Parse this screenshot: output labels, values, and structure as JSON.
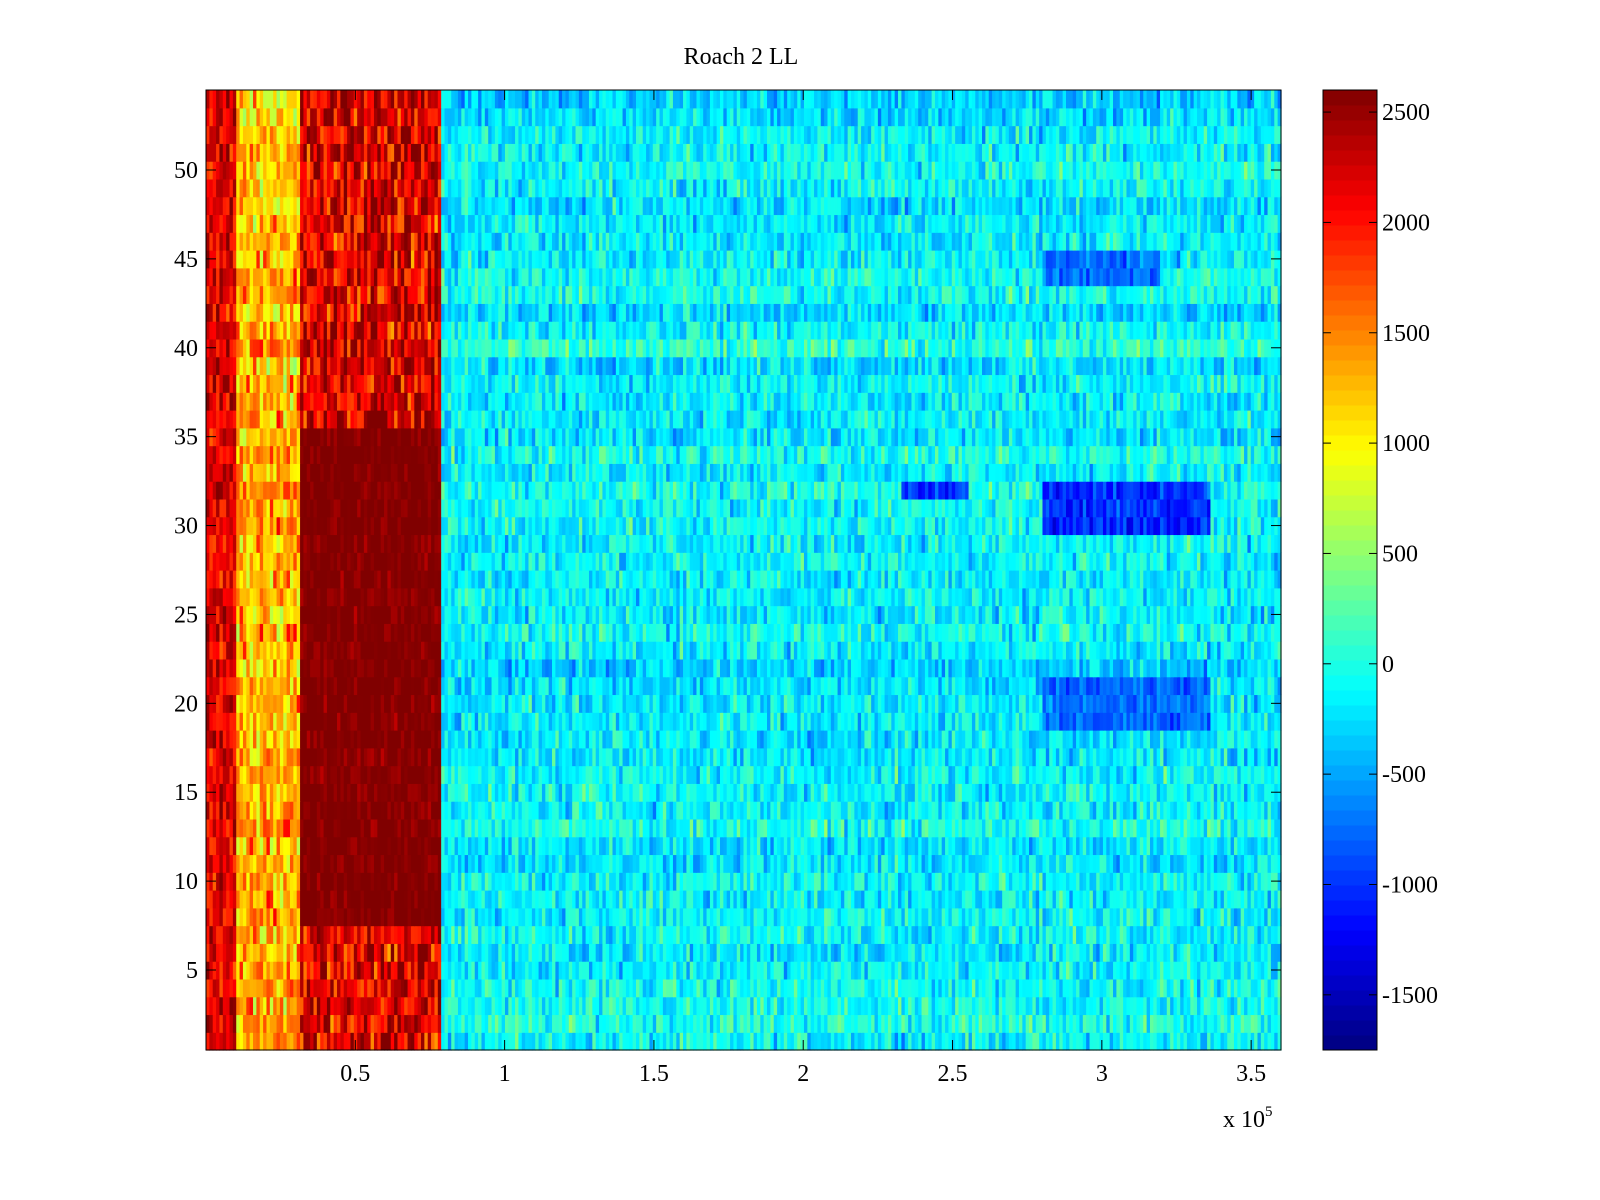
{
  "chart_data": {
    "type": "heatmap",
    "title": "Roach 2 LL",
    "xlabel": "",
    "ylabel": "",
    "x_multiplier_label": "x 10",
    "x_multiplier_exponent": "5",
    "xlim": [
      0,
      360000
    ],
    "ylim": [
      0.5,
      54.5
    ],
    "x_ticks": [
      0.5,
      1,
      1.5,
      2,
      2.5,
      3,
      3.5
    ],
    "x_tick_labels": [
      "0.5",
      "1",
      "1.5",
      "2",
      "2.5",
      "3",
      "3.5"
    ],
    "y_ticks": [
      5,
      10,
      15,
      20,
      25,
      30,
      35,
      40,
      45,
      50
    ],
    "y_tick_labels": [
      "5",
      "10",
      "15",
      "20",
      "25",
      "30",
      "35",
      "40",
      "45",
      "50"
    ],
    "colorbar": {
      "colormap": "jet",
      "clim": [
        -1750,
        2600
      ],
      "ticks": [
        -1500,
        -1000,
        -500,
        0,
        500,
        1000,
        1500,
        2000,
        2500
      ],
      "tick_labels": [
        "-1500",
        "-1000",
        "-500",
        "0",
        "500",
        "1000",
        "1500",
        "2000",
        "2500"
      ]
    },
    "rows": 54,
    "column_bands": [
      {
        "x_range": [
          0,
          10000
        ],
        "approx_value": 2200,
        "description": "red"
      },
      {
        "x_range": [
          10000,
          31000
        ],
        "approx_value": 1300,
        "description": "orange-yellow"
      },
      {
        "x_range": [
          31000,
          79000
        ],
        "approx_value": 2600,
        "description": "dark red"
      },
      {
        "x_range": [
          79000,
          360000
        ],
        "approx_value": -150,
        "description": "cyan-blue noise"
      }
    ],
    "low_regions": [
      {
        "x_range": [
          280000,
          336000
        ],
        "y_range": [
          29.5,
          32.5
        ],
        "approx_value": -1000
      },
      {
        "x_range": [
          233000,
          255000
        ],
        "y_range": [
          31.5,
          32.5
        ],
        "approx_value": -1000
      },
      {
        "x_range": [
          280000,
          336000
        ],
        "y_range": [
          18.5,
          21.5
        ],
        "approx_value": -750
      },
      {
        "x_range": [
          280000,
          320000
        ],
        "y_range": [
          43.5,
          45.5
        ],
        "approx_value": -750
      }
    ]
  }
}
